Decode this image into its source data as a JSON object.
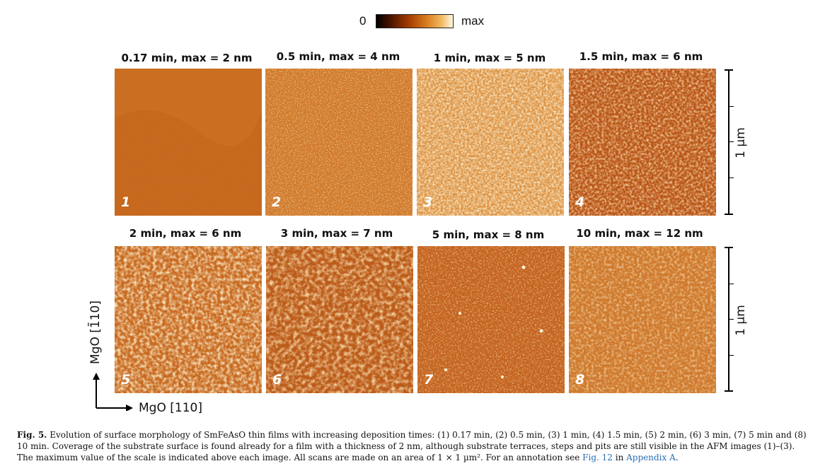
{
  "colorbar": {
    "min_label": "0",
    "max_label": "max"
  },
  "panels": [
    {
      "title": "0.17 min, max = 2 nm",
      "number": "1"
    },
    {
      "title": "0.5 min, max = 4 nm",
      "number": "2"
    },
    {
      "title": "1 min, max = 5 nm",
      "number": "3"
    },
    {
      "title": "1.5 min, max = 6 nm",
      "number": "4"
    },
    {
      "title": "2 min, max = 6 nm",
      "number": "5"
    },
    {
      "title": "3 min, max = 7 nm",
      "number": "6"
    },
    {
      "title": "5 min, max = 8 nm",
      "number": "7"
    },
    {
      "title": "10 min, max = 12 nm",
      "number": "8"
    }
  ],
  "scale_bar_label": "1 µm",
  "axes": {
    "vertical": "MgO [1̄10]",
    "horizontal": "MgO [110]"
  },
  "caption": {
    "fig_label": "Fig. 5.",
    "text_1": "Evolution of surface morphology of SmFeAsO thin films with increasing deposition times: (1) 0.17 min, (2) 0.5 min, (3) 1 min, (4) 1.5 min, (5) 2 min, (6) 3 min, (7) 5 min and (8) 10 min. Coverage of the substrate surface is found already for a film with a thickness of 2 nm, although substrate terraces, steps and pits are still visible in the AFM images (1)–(3). The maximum value of the scale is indicated above each image. All scans are made on an area of 1 × 1 µm². For an annotation see ",
    "link_1": "Fig. 12",
    "text_2": " in ",
    "link_2": "Appendix A",
    "text_3": "."
  },
  "colors": {
    "afm_base": "#c96a1f",
    "afm_light": "#f8cf88",
    "afm_dark": "#8a3508",
    "link": "#2a6db5"
  }
}
